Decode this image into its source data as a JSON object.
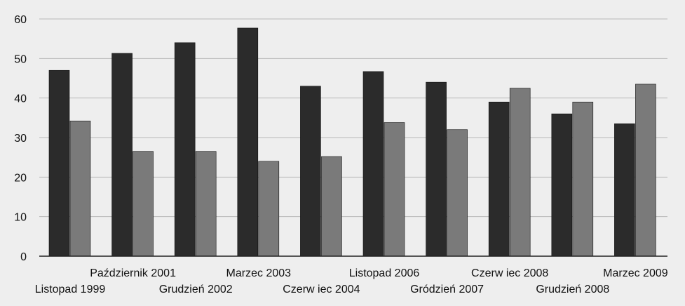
{
  "chart_data": {
    "type": "bar",
    "categories": [
      "Listopad 1999",
      "Październik 2001",
      "Grudzień 2002",
      "Marzec 2003",
      "Czerw iec 2004",
      "Listopad 2006",
      "Gródzień 2007",
      "Czerw iec 2008",
      "Grudzień 2008",
      "Marzec 2009"
    ],
    "series": [
      {
        "values": [
          47,
          51.3,
          54,
          57.7,
          43,
          46.7,
          44,
          39,
          36,
          33.5
        ]
      },
      {
        "values": [
          34.2,
          26.5,
          26.5,
          24,
          25.2,
          33.8,
          32,
          42.5,
          39,
          43.5
        ]
      }
    ],
    "colors": [
      "#2b2b2b",
      "#7a7a7a"
    ],
    "ylim": [
      0,
      60
    ],
    "yticks": [
      0,
      10,
      20,
      30,
      40,
      50,
      60
    ],
    "grid": true,
    "legend": "none",
    "title": "",
    "xlabel": "",
    "ylabel": ""
  }
}
